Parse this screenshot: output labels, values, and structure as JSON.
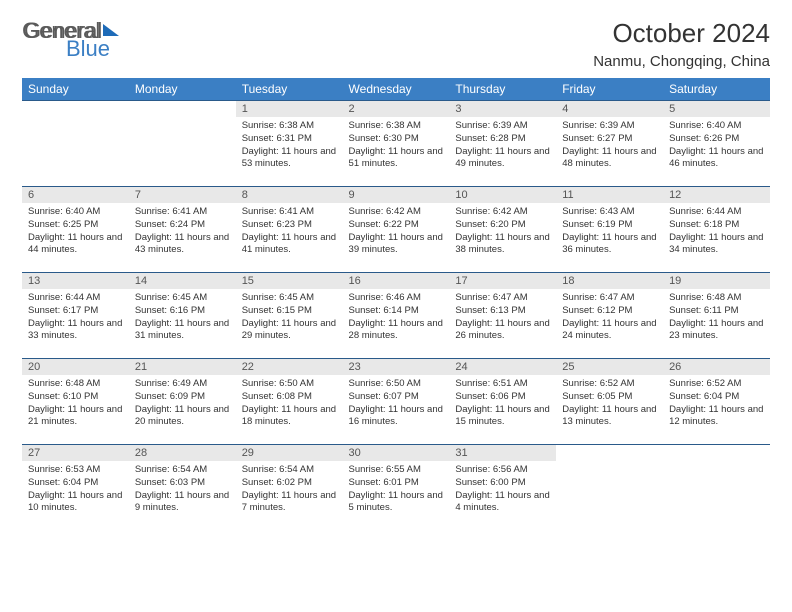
{
  "logo": {
    "part1": "General",
    "part2": "Blue"
  },
  "title": "October 2024",
  "location": "Nanmu, Chongqing, China",
  "colors": {
    "header_bg": "#3b7fc4",
    "header_text": "#ffffff",
    "daynum_bg": "#e8e8e8",
    "border": "#2a5a8a",
    "text": "#333333"
  },
  "day_headers": [
    "Sunday",
    "Monday",
    "Tuesday",
    "Wednesday",
    "Thursday",
    "Friday",
    "Saturday"
  ],
  "weeks": [
    [
      null,
      null,
      {
        "n": "1",
        "sr": "6:38 AM",
        "ss": "6:31 PM",
        "dl": "11 hours and 53 minutes."
      },
      {
        "n": "2",
        "sr": "6:38 AM",
        "ss": "6:30 PM",
        "dl": "11 hours and 51 minutes."
      },
      {
        "n": "3",
        "sr": "6:39 AM",
        "ss": "6:28 PM",
        "dl": "11 hours and 49 minutes."
      },
      {
        "n": "4",
        "sr": "6:39 AM",
        "ss": "6:27 PM",
        "dl": "11 hours and 48 minutes."
      },
      {
        "n": "5",
        "sr": "6:40 AM",
        "ss": "6:26 PM",
        "dl": "11 hours and 46 minutes."
      }
    ],
    [
      {
        "n": "6",
        "sr": "6:40 AM",
        "ss": "6:25 PM",
        "dl": "11 hours and 44 minutes."
      },
      {
        "n": "7",
        "sr": "6:41 AM",
        "ss": "6:24 PM",
        "dl": "11 hours and 43 minutes."
      },
      {
        "n": "8",
        "sr": "6:41 AM",
        "ss": "6:23 PM",
        "dl": "11 hours and 41 minutes."
      },
      {
        "n": "9",
        "sr": "6:42 AM",
        "ss": "6:22 PM",
        "dl": "11 hours and 39 minutes."
      },
      {
        "n": "10",
        "sr": "6:42 AM",
        "ss": "6:20 PM",
        "dl": "11 hours and 38 minutes."
      },
      {
        "n": "11",
        "sr": "6:43 AM",
        "ss": "6:19 PM",
        "dl": "11 hours and 36 minutes."
      },
      {
        "n": "12",
        "sr": "6:44 AM",
        "ss": "6:18 PM",
        "dl": "11 hours and 34 minutes."
      }
    ],
    [
      {
        "n": "13",
        "sr": "6:44 AM",
        "ss": "6:17 PM",
        "dl": "11 hours and 33 minutes."
      },
      {
        "n": "14",
        "sr": "6:45 AM",
        "ss": "6:16 PM",
        "dl": "11 hours and 31 minutes."
      },
      {
        "n": "15",
        "sr": "6:45 AM",
        "ss": "6:15 PM",
        "dl": "11 hours and 29 minutes."
      },
      {
        "n": "16",
        "sr": "6:46 AM",
        "ss": "6:14 PM",
        "dl": "11 hours and 28 minutes."
      },
      {
        "n": "17",
        "sr": "6:47 AM",
        "ss": "6:13 PM",
        "dl": "11 hours and 26 minutes."
      },
      {
        "n": "18",
        "sr": "6:47 AM",
        "ss": "6:12 PM",
        "dl": "11 hours and 24 minutes."
      },
      {
        "n": "19",
        "sr": "6:48 AM",
        "ss": "6:11 PM",
        "dl": "11 hours and 23 minutes."
      }
    ],
    [
      {
        "n": "20",
        "sr": "6:48 AM",
        "ss": "6:10 PM",
        "dl": "11 hours and 21 minutes."
      },
      {
        "n": "21",
        "sr": "6:49 AM",
        "ss": "6:09 PM",
        "dl": "11 hours and 20 minutes."
      },
      {
        "n": "22",
        "sr": "6:50 AM",
        "ss": "6:08 PM",
        "dl": "11 hours and 18 minutes."
      },
      {
        "n": "23",
        "sr": "6:50 AM",
        "ss": "6:07 PM",
        "dl": "11 hours and 16 minutes."
      },
      {
        "n": "24",
        "sr": "6:51 AM",
        "ss": "6:06 PM",
        "dl": "11 hours and 15 minutes."
      },
      {
        "n": "25",
        "sr": "6:52 AM",
        "ss": "6:05 PM",
        "dl": "11 hours and 13 minutes."
      },
      {
        "n": "26",
        "sr": "6:52 AM",
        "ss": "6:04 PM",
        "dl": "11 hours and 12 minutes."
      }
    ],
    [
      {
        "n": "27",
        "sr": "6:53 AM",
        "ss": "6:04 PM",
        "dl": "11 hours and 10 minutes."
      },
      {
        "n": "28",
        "sr": "6:54 AM",
        "ss": "6:03 PM",
        "dl": "11 hours and 9 minutes."
      },
      {
        "n": "29",
        "sr": "6:54 AM",
        "ss": "6:02 PM",
        "dl": "11 hours and 7 minutes."
      },
      {
        "n": "30",
        "sr": "6:55 AM",
        "ss": "6:01 PM",
        "dl": "11 hours and 5 minutes."
      },
      {
        "n": "31",
        "sr": "6:56 AM",
        "ss": "6:00 PM",
        "dl": "11 hours and 4 minutes."
      },
      null,
      null
    ]
  ],
  "labels": {
    "sunrise": "Sunrise:",
    "sunset": "Sunset:",
    "daylight": "Daylight:"
  }
}
